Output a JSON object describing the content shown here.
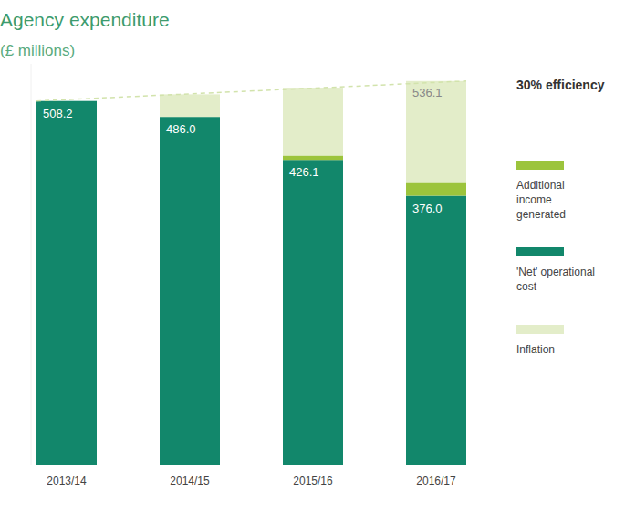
{
  "chart_data": {
    "type": "bar",
    "title": "Agency expenditure",
    "subtitle": "(£ millions)",
    "legend_title": "30% efficiency",
    "categories": [
      "2013/14",
      "2014/15",
      "2015/16",
      "2016/17"
    ],
    "stacked": true,
    "tick_labels": "x",
    "ylim": [
      0,
      560
    ],
    "yticks": [],
    "series": [
      {
        "name": "'Net' operational cost",
        "color": "#12876b",
        "values": [
          508.2,
          486.0,
          426.1,
          376.0
        ],
        "value_labels": [
          "508.2",
          "486.0",
          "426.1",
          "376.0"
        ],
        "data_labels": true
      },
      {
        "name": "Additional income generated",
        "color": "#9cc43c",
        "values": [
          0,
          0,
          6,
          18
        ]
      },
      {
        "name": "Inflation",
        "color": "#e3edc9",
        "values": [
          0,
          31.5,
          94.7,
          142.1
        ]
      }
    ],
    "trend_line": {
      "values": [
        508.2,
        517.5,
        526.8,
        536.1
      ],
      "value_labels": [
        null,
        null,
        null,
        "536.1"
      ],
      "line_style": "dashed",
      "color": "#d2e3ac"
    }
  }
}
